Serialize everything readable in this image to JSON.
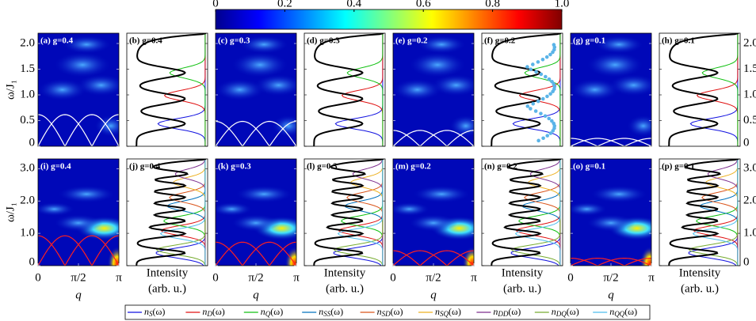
{
  "colorbar": {
    "lim": [
      0,
      1
    ],
    "ticks": [
      0,
      0.2,
      0.4,
      0.6,
      0.8,
      {
        "value": 1,
        "label": "1.0"
      }
    ]
  },
  "ylabel": "ω/J₁",
  "rows": [
    {
      "ylim": [
        0,
        2.2
      ],
      "yticks": [
        0,
        0.5,
        {
          "value": 1,
          "label": "1.0"
        },
        1.5,
        {
          "value": 2,
          "label": "2.0"
        }
      ],
      "panels": [
        "(a) g=0.4",
        "(b) g=0.4",
        "(c) g=0.3",
        "(d) g=0.3",
        "(e) g=0.2",
        "(f) g=0.2",
        "(g) g=0.1",
        "(h) g=0.1"
      ]
    },
    {
      "ylim": [
        0,
        3.3
      ],
      "yticks": [
        0,
        {
          "value": 1,
          "label": "1.0"
        },
        {
          "value": 2,
          "label": "2.0"
        },
        {
          "value": 3,
          "label": "3.0"
        }
      ],
      "panels": [
        "(i) g=0.4",
        "(j) g=0.4",
        "(k) g=0.3",
        "(l) g=0.3",
        "(m) g=0.2",
        "(n) g=0.2",
        "(o) g=0.1",
        "(p) g=0.1"
      ]
    }
  ],
  "map_axis": {
    "xlim": [
      0,
      3.1416
    ],
    "xticks": [
      0,
      {
        "value": 1.5708,
        "label": "π/2"
      },
      {
        "value": 3.1416,
        "label": "π"
      }
    ],
    "xlabel": "q"
  },
  "spectrum_axis": {
    "xlabel": [
      "Intensity",
      "(arb. u.)"
    ]
  },
  "legend": [
    {
      "name": "nS(ω)",
      "color": "#1010e0"
    },
    {
      "name": "nD(ω)",
      "color": "#e01010"
    },
    {
      "name": "nQ(ω)",
      "color": "#10c010"
    },
    {
      "name": "nSS(ω)",
      "color": "#0072bd"
    },
    {
      "name": "nSD(ω)",
      "color": "#d95319"
    },
    {
      "name": "nSQ(ω)",
      "color": "#edb120"
    },
    {
      "name": "nDD(ω)",
      "color": "#7e2f8e"
    },
    {
      "name": "nDQ(ω)",
      "color": "#77ac30"
    },
    {
      "name": "nQQ(ω)",
      "color": "#4dbeee"
    }
  ]
}
